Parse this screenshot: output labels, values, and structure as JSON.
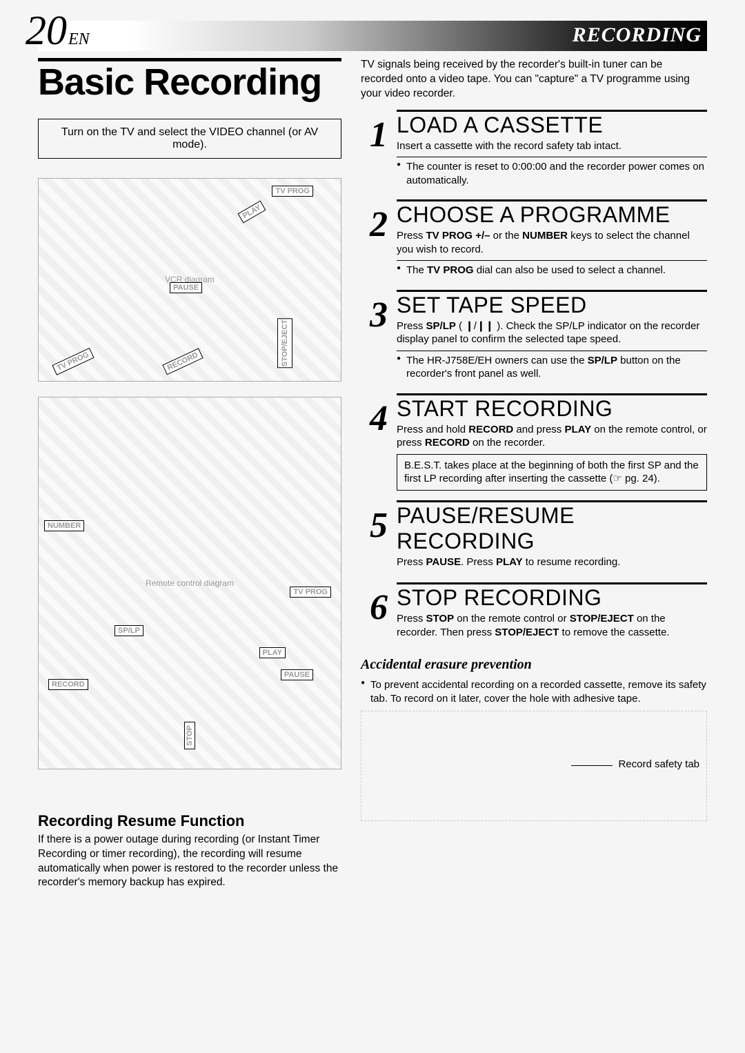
{
  "header": {
    "page_number": "20",
    "page_lang": "EN",
    "section": "RECORDING"
  },
  "left": {
    "title": "Basic Recording",
    "box_text": "Turn on the TV and select the VIDEO channel (or AV mode).",
    "vcr_labels": {
      "tv_prog": "TV PROG",
      "play": "PLAY",
      "pause": "PAUSE",
      "tv_prog2": "TV PROG",
      "record": "RECORD",
      "stop_eject": "STOP/EJECT"
    },
    "remote_labels": {
      "number": "NUMBER",
      "tv_prog": "TV PROG",
      "sp_lp": "SP/LP",
      "play": "PLAY",
      "pause": "PAUSE",
      "record": "RECORD",
      "stop": "STOP"
    },
    "resume_title": "Recording Resume Function",
    "resume_body": "If there is a power outage during recording (or Instant Timer Recording or timer recording), the recording will resume automatically when power is restored to the recorder unless the recorder's memory backup has expired."
  },
  "right": {
    "intro": "TV signals being received by the recorder's built-in tuner can be recorded onto a video tape. You can \"capture\" a TV programme using your video recorder.",
    "steps": [
      {
        "num": "1",
        "title": "LOAD A CASSETTE",
        "desc": "Insert a cassette with the record safety tab intact.",
        "bullets": [
          "The counter is reset to 0:00:00 and the recorder power comes on automatically."
        ]
      },
      {
        "num": "2",
        "title": "CHOOSE A PROGRAMME",
        "desc_html": "Press <b>TV PROG +/–</b> or the <b>NUMBER</b> keys to select the channel you wish to record.",
        "bullets_html": [
          "The <b>TV PROG</b> dial can also be used to select a channel."
        ]
      },
      {
        "num": "3",
        "title": "SET TAPE SPEED",
        "desc_html": "Press <b>SP/LP</b> ( ❙/❙❙ ). Check the SP/LP indicator on the recorder display panel to confirm the selected tape speed.",
        "bullets_html": [
          "The HR-J758E/EH owners can use the <b>SP/LP</b> button on the recorder's front panel as well."
        ]
      },
      {
        "num": "4",
        "title": "START RECORDING",
        "desc_html": "Press and hold <b>RECORD</b> and press <b>PLAY</b> on the remote control, or press <b>RECORD</b> on the recorder.",
        "note": "B.E.S.T. takes place at the beginning of both the first SP and the first LP recording after inserting the cassette (☞ pg. 24)."
      },
      {
        "num": "5",
        "title": "PAUSE/RESUME RECORDING",
        "desc_html": "Press <b>PAUSE</b>. Press <b>PLAY</b> to resume recording."
      },
      {
        "num": "6",
        "title": "STOP RECORDING",
        "desc_html": "Press <b>STOP</b> on the remote control or <b>STOP/EJECT</b> on the recorder. Then press <b>STOP/EJECT</b> to remove the cassette."
      }
    ],
    "erasure_title": "Accidental erasure prevention",
    "erasure_bullet": "To prevent accidental recording on a recorded cassette, remove its safety tab. To record on it later, cover the hole with adhesive tape.",
    "callout": "Record safety tab"
  }
}
